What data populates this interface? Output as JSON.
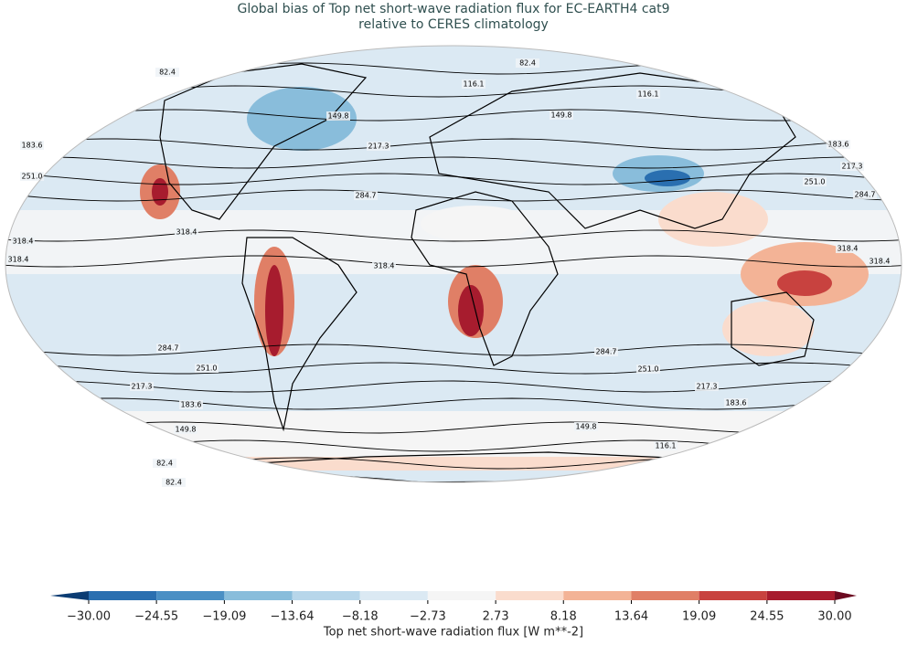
{
  "chart_data": {
    "type": "map",
    "title": "Global bias of Top net short-wave radiation flux for EC-EARTH4 cat9",
    "subtitle": "relative to CERES climatology",
    "contour_levels": [
      82.4,
      116.1,
      149.8,
      183.6,
      217.3,
      {
        "value": 251.0,
        "label": "251.0"
      },
      284.7,
      318.4
    ],
    "colorbar": {
      "label": "Top net short-wave radiation flux [W m**-2]",
      "lim": [
        -30,
        30
      ],
      "ticks": [
        {
          "value": -30,
          "label": "−30.00"
        },
        {
          "value": -24.55,
          "label": "−24.55"
        },
        {
          "value": -19.09,
          "label": "−19.09"
        },
        {
          "value": -13.64,
          "label": "−13.64"
        },
        {
          "value": -8.18,
          "label": "−8.18"
        },
        {
          "value": -2.73,
          "label": "−2.73"
        },
        {
          "value": 2.73,
          "label": "2.73"
        },
        {
          "value": 8.18,
          "label": "8.18"
        },
        {
          "value": 13.64,
          "label": "13.64"
        },
        {
          "value": 19.09,
          "label": "19.09"
        },
        {
          "value": 24.55,
          "label": "24.55"
        },
        {
          "value": 30,
          "label": "30.00"
        }
      ],
      "colors": [
        "#2a6fb0",
        "#4a8fc4",
        "#89bddb",
        "#b7d6ea",
        "#dbe9f3",
        "#f5f5f5",
        "#fadccd",
        "#f3b396",
        "#e07f66",
        "#c8423f",
        "#a71c2e"
      ],
      "under_color": "#0b3c73",
      "over_color": "#6b0a20"
    }
  }
}
